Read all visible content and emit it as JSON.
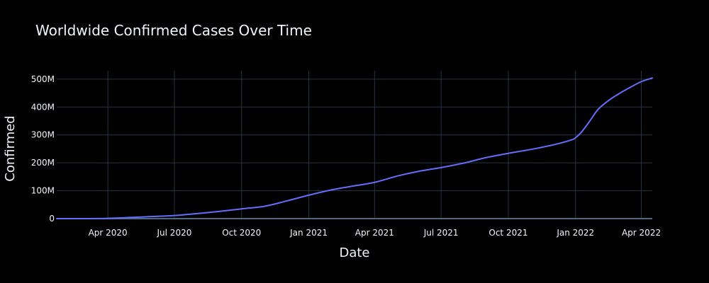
{
  "chart_data": {
    "type": "line",
    "title": "Worldwide Confirmed Cases Over Time",
    "xlabel": "Date",
    "ylabel": "Confirmed",
    "x_tick_labels": [
      {
        "date": "2020-04-01",
        "label": "Apr 2020"
      },
      {
        "date": "2020-07-01",
        "label": "Jul 2020"
      },
      {
        "date": "2020-10-01",
        "label": "Oct 2020"
      },
      {
        "date": "2021-01-01",
        "label": "Jan 2021"
      },
      {
        "date": "2021-04-01",
        "label": "Apr 2021"
      },
      {
        "date": "2021-07-01",
        "label": "Jul 2021"
      },
      {
        "date": "2021-10-01",
        "label": "Oct 2021"
      },
      {
        "date": "2022-01-01",
        "label": "Jan 2022"
      },
      {
        "date": "2022-04-01",
        "label": "Apr 2022"
      }
    ],
    "y_tick_labels": [
      {
        "value": 0,
        "label": "0"
      },
      {
        "value": 100000000,
        "label": "100M"
      },
      {
        "value": 200000000,
        "label": "200M"
      },
      {
        "value": 300000000,
        "label": "300M"
      },
      {
        "value": 400000000,
        "label": "400M"
      },
      {
        "value": 500000000,
        "label": "500M"
      }
    ],
    "xlim": [
      "2020-01-22",
      "2022-04-16"
    ],
    "ylim": [
      0,
      530000000
    ],
    "grid": true,
    "line_color": "#636efa",
    "series": [
      {
        "x": [
          "2020-01-22",
          "2020-02-15",
          "2020-03-15",
          "2020-04-01",
          "2020-05-01",
          "2020-06-01",
          "2020-07-01",
          "2020-08-01",
          "2020-09-01",
          "2020-10-01",
          "2020-11-01",
          "2020-12-01",
          "2021-01-01",
          "2021-02-01",
          "2021-03-01",
          "2021-04-01",
          "2021-05-01",
          "2021-06-01",
          "2021-07-01",
          "2021-08-01",
          "2021-09-01",
          "2021-10-01",
          "2021-11-01",
          "2021-12-01",
          "2021-12-25",
          "2022-01-01",
          "2022-01-10",
          "2022-01-20",
          "2022-02-01",
          "2022-02-15",
          "2022-03-01",
          "2022-03-15",
          "2022-04-01",
          "2022-04-16"
        ],
        "y": [
          600,
          80000,
          200000,
          1000000,
          4000000,
          7500000,
          11000000,
          18000000,
          26000000,
          35000000,
          44000000,
          63000000,
          84000000,
          103000000,
          116000000,
          130000000,
          152000000,
          170000000,
          183000000,
          199000000,
          219000000,
          234000000,
          248000000,
          264000000,
          281000000,
          290000000,
          313000000,
          348000000,
          392000000,
          423000000,
          447000000,
          468000000,
          491000000,
          504000000
        ]
      }
    ]
  }
}
